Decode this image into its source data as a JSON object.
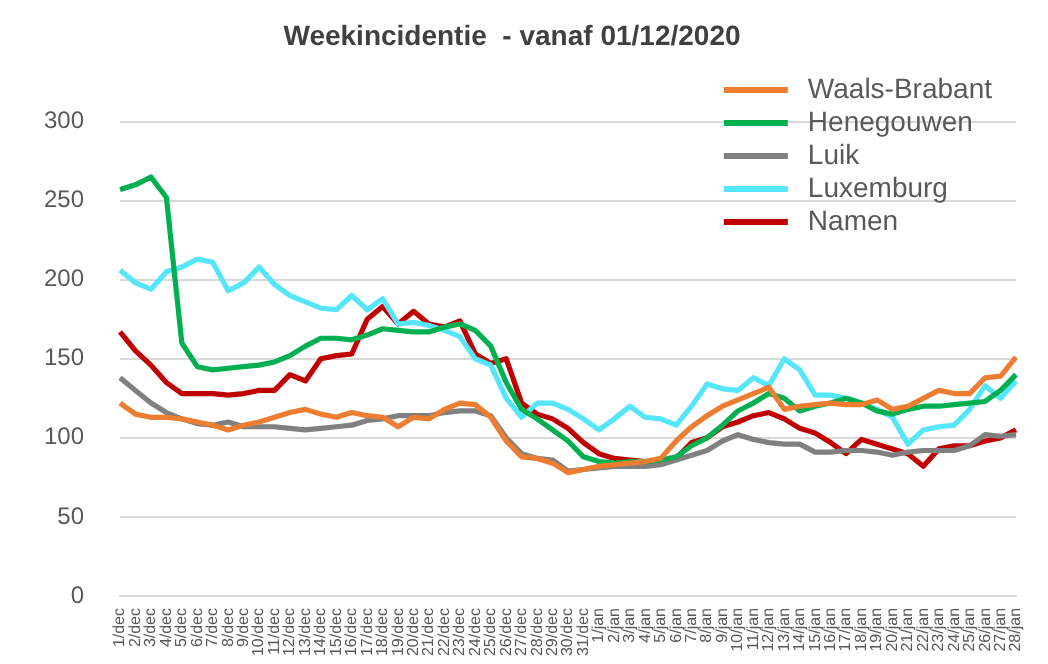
{
  "chart_data": {
    "type": "line",
    "title": "Weekincidentie  - vanaf 01/12/2020",
    "categories": [
      "1/dec",
      "2/dec",
      "3/dec",
      "4/dec",
      "5/dec",
      "6/dec",
      "7/dec",
      "8/dec",
      "9/dec",
      "10/dec",
      "11/dec",
      "12/dec",
      "13/dec",
      "14/dec",
      "15/dec",
      "16/dec",
      "17/dec",
      "18/dec",
      "19/dec",
      "20/dec",
      "21/dec",
      "22/dec",
      "23/dec",
      "24/dec",
      "25/dec",
      "26/dec",
      "27/dec",
      "28/dec",
      "29/dec",
      "30/dec",
      "31/dec",
      "1/jan",
      "2/jan",
      "3/jan",
      "4/jan",
      "5/jan",
      "6/jan",
      "7/jan",
      "8/jan",
      "9/jan",
      "10/jan",
      "11/jan",
      "12/jan",
      "13/jan",
      "14/jan",
      "15/jan",
      "16/jan",
      "17/jan",
      "18/jan",
      "19/jan",
      "20/jan",
      "21/jan",
      "22/jan",
      "23/jan",
      "24/jan",
      "25/jan",
      "26/jan",
      "27/jan",
      "28/jan"
    ],
    "series": [
      {
        "name": "Waals-Brabant",
        "color": "#ed7d31",
        "values": [
          122,
          115,
          113,
          113,
          112,
          110,
          108,
          105,
          108,
          110,
          113,
          116,
          118,
          115,
          113,
          116,
          114,
          113,
          107,
          113,
          112,
          118,
          122,
          121,
          113,
          98,
          88,
          87,
          84,
          78,
          80,
          82,
          83,
          84,
          85,
          87,
          98,
          107,
          114,
          120,
          124,
          128,
          132,
          118,
          120,
          121,
          122,
          121,
          121,
          124,
          118,
          120,
          125,
          130,
          128,
          128,
          138,
          139,
          151
        ]
      },
      {
        "name": "Henegouwen",
        "color": "#00b050",
        "values": [
          257,
          260,
          265,
          252,
          160,
          145,
          143,
          144,
          145,
          146,
          148,
          152,
          158,
          163,
          163,
          162,
          165,
          169,
          168,
          167,
          167,
          170,
          172,
          168,
          158,
          135,
          118,
          112,
          105,
          98,
          88,
          85,
          84,
          85,
          85,
          86,
          88,
          95,
          100,
          108,
          117,
          122,
          128,
          125,
          117,
          120,
          122,
          125,
          122,
          117,
          115,
          118,
          120,
          120,
          121,
          122,
          123,
          130,
          140
        ]
      },
      {
        "name": "Luik",
        "color": "#808080",
        "values": [
          138,
          130,
          122,
          116,
          112,
          109,
          108,
          110,
          107,
          107,
          107,
          106,
          105,
          106,
          107,
          108,
          111,
          112,
          114,
          114,
          114,
          116,
          117,
          117,
          114,
          100,
          90,
          87,
          86,
          79,
          80,
          81,
          82,
          82,
          82,
          83,
          86,
          89,
          92,
          98,
          102,
          99,
          97,
          96,
          96,
          91,
          91,
          92,
          92,
          91,
          89,
          91,
          92,
          92,
          92,
          95,
          102,
          101,
          102
        ]
      },
      {
        "name": "Luxemburg",
        "color": "#55e6fa",
        "values": [
          206,
          198,
          194,
          205,
          208,
          213,
          211,
          193,
          198,
          208,
          197,
          190,
          186,
          182,
          181,
          190,
          181,
          188,
          172,
          173,
          171,
          168,
          164,
          150,
          146,
          125,
          113,
          122,
          122,
          118,
          112,
          105,
          112,
          120,
          113,
          112,
          108,
          120,
          134,
          131,
          130,
          138,
          133,
          150,
          143,
          127,
          127,
          125,
          122,
          118,
          113,
          96,
          105,
          107,
          108,
          118,
          133,
          125,
          136
        ]
      },
      {
        "name": "Namen",
        "color": "#c00000",
        "values": [
          167,
          155,
          146,
          135,
          128,
          128,
          128,
          127,
          128,
          130,
          130,
          140,
          136,
          150,
          152,
          153,
          175,
          183,
          172,
          180,
          172,
          170,
          174,
          153,
          147,
          150,
          122,
          115,
          112,
          106,
          97,
          90,
          87,
          86,
          85,
          85,
          87,
          97,
          100,
          107,
          110,
          114,
          116,
          112,
          106,
          103,
          97,
          90,
          99,
          96,
          93,
          90,
          82,
          93,
          95,
          95,
          98,
          100,
          105
        ]
      }
    ],
    "ylim": [
      0,
      300
    ],
    "yticks": [
      0,
      50,
      100,
      150,
      200,
      250,
      300
    ],
    "grid": "y",
    "legend": "top right",
    "line_style": "solid"
  }
}
